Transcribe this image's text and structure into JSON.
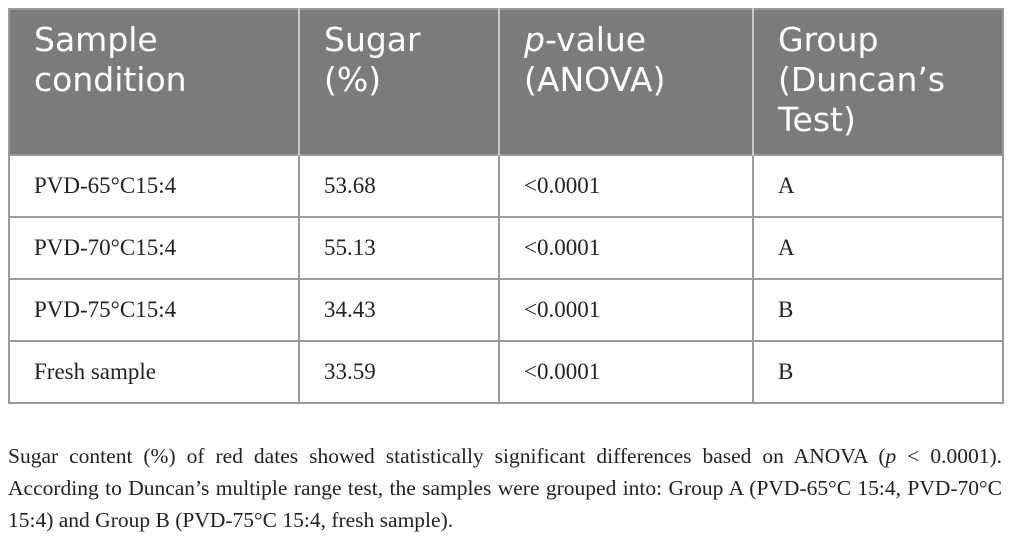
{
  "table": {
    "headers": [
      {
        "line1": "Sample",
        "line2": "condition",
        "line3": ""
      },
      {
        "line1": "Sugar",
        "line2": "(%)",
        "line3": ""
      },
      {
        "line1_italic": "p",
        "line1": "-value",
        "line2": "(ANOVA)",
        "line3": ""
      },
      {
        "line1": "Group",
        "line2": "(Duncan’s",
        "line3": "Test)"
      }
    ],
    "rows": [
      {
        "condition": "PVD-65°C15:4",
        "sugar": "53.68",
        "p_value": "<0.0001",
        "group": "A"
      },
      {
        "condition": "PVD-70°C15:4",
        "sugar": "55.13",
        "p_value": "<0.0001",
        "group": "A"
      },
      {
        "condition": "PVD-75°C15:4",
        "sugar": "34.43",
        "p_value": "<0.0001",
        "group": "B"
      },
      {
        "condition": "Fresh sample",
        "sugar": "33.59",
        "p_value": "<0.0001",
        "group": "B"
      }
    ]
  },
  "caption": {
    "part1": "Sugar content (%) of red dates showed statistically significant differences based on ANOVA (",
    "p_italic": "p",
    "part2": " < 0.0001). According to Duncan’s multiple range test, the samples were grouped into: Group A (PVD-65°C 15:4, PVD-70°C 15:4) and Group B (PVD-75°C 15:4, fresh sample)."
  },
  "colors": {
    "header_bg": "#7b7b7b",
    "header_text": "#ffffff",
    "border": "#9a9a9a",
    "body_text": "#222222"
  }
}
